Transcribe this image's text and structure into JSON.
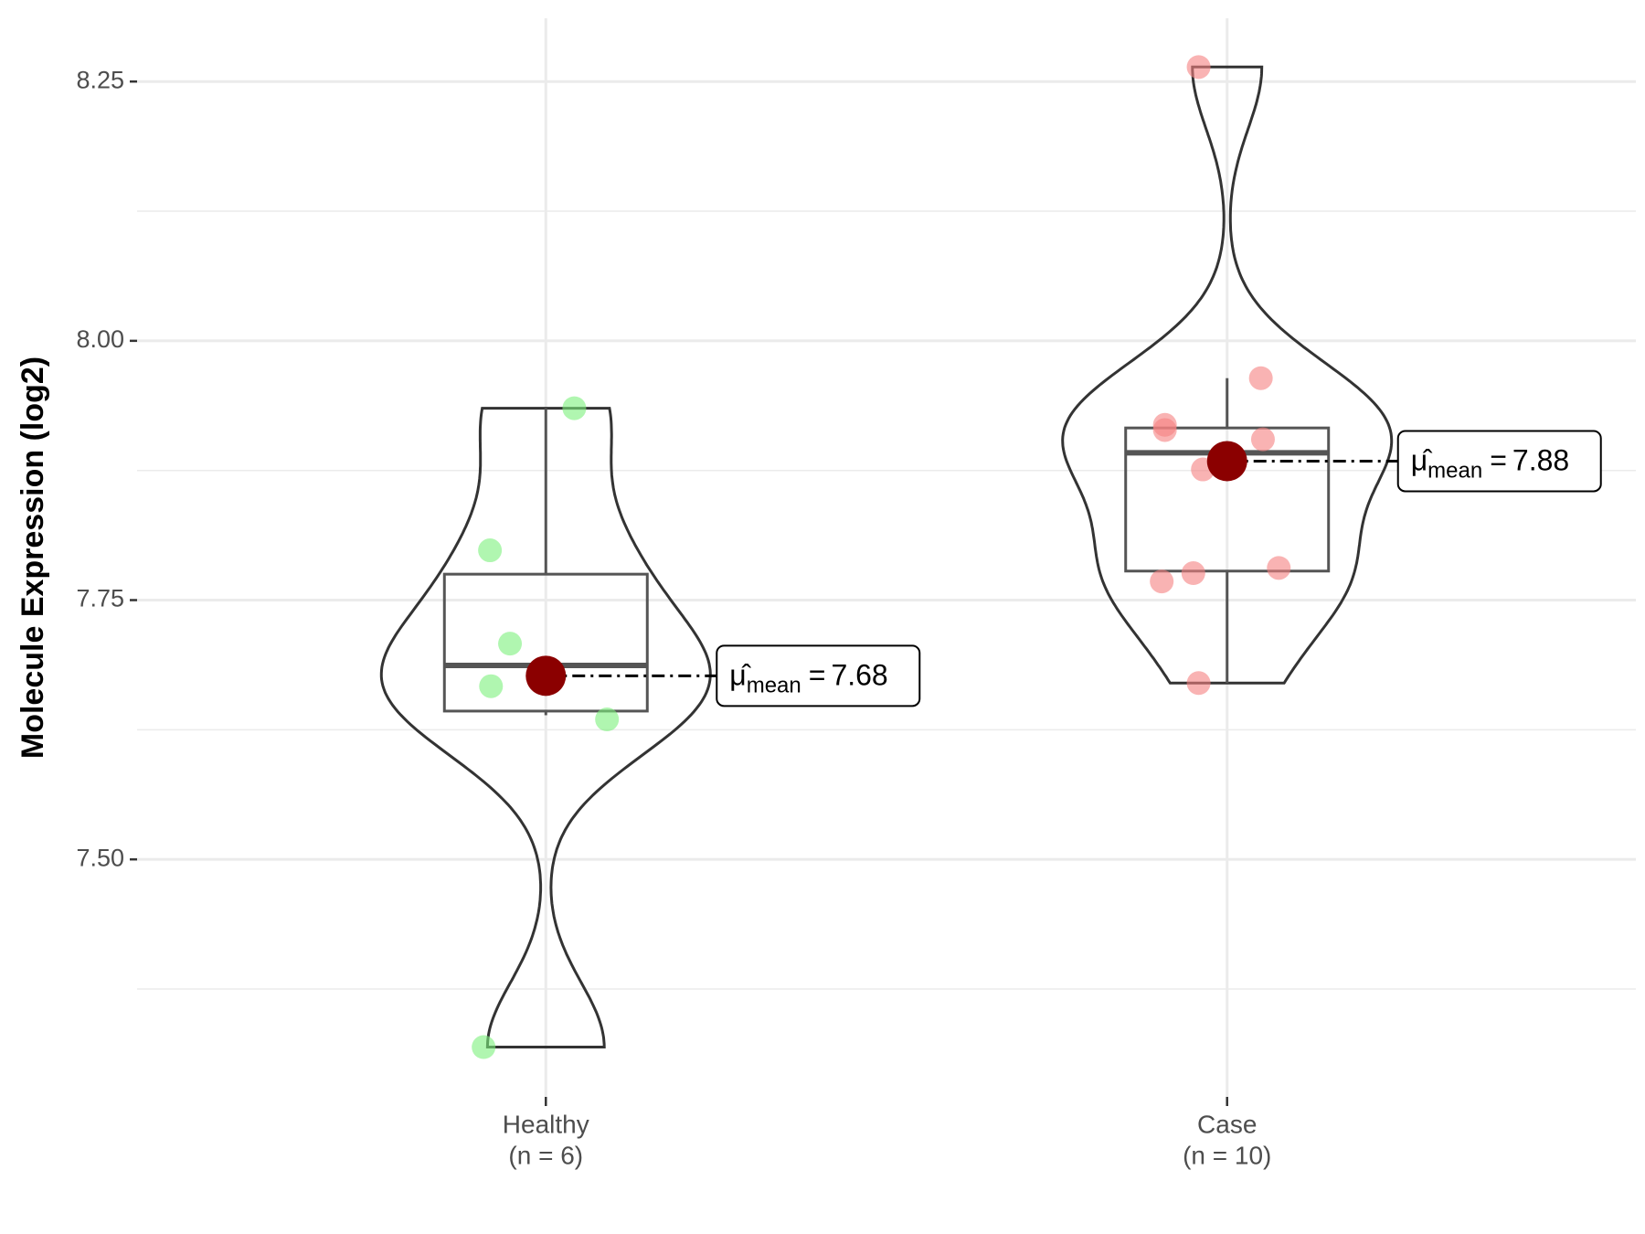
{
  "chart_data": {
    "type": "violin",
    "y_label": "Molecule Expression (log2)",
    "categories": [
      "Healthy",
      "Case"
    ],
    "category_counts": [
      "(n = 6)",
      "(n = 10)"
    ],
    "ylim": [
      7.271,
      8.311
    ],
    "yticks": [
      {
        "value": 7.5,
        "label": "7.50"
      },
      {
        "value": 7.75,
        "label": "7.75"
      },
      {
        "value": 8.0,
        "label": "8.00"
      },
      {
        "value": 8.25,
        "label": "8.25"
      }
    ],
    "minor_yticks": [
      7.375,
      7.625,
      7.875,
      8.125
    ],
    "grid": true,
    "mean_symbol": "μ̂",
    "mean_subscript": "mean",
    "mean_equals": "=",
    "mean_color": "#8b0000",
    "groups": [
      {
        "color": "#7cf07c",
        "values": [
          7.935,
          7.798,
          7.708,
          7.667,
          7.635,
          7.319
        ],
        "q1": 7.643,
        "median": 7.687,
        "q3": 7.775,
        "whisker_low": 7.639,
        "whisker_high": 7.935,
        "mean": 7.677,
        "mean_label": "7.68"
      },
      {
        "color": "#f58080",
        "values": [
          8.264,
          7.964,
          7.919,
          7.914,
          7.905,
          7.876,
          7.781,
          7.776,
          7.768,
          7.67
        ],
        "q1": 7.778,
        "median": 7.892,
        "q3": 7.916,
        "whisker_low": 7.67,
        "whisker_high": 7.964,
        "mean": 7.884,
        "mean_label": "7.88"
      }
    ]
  }
}
